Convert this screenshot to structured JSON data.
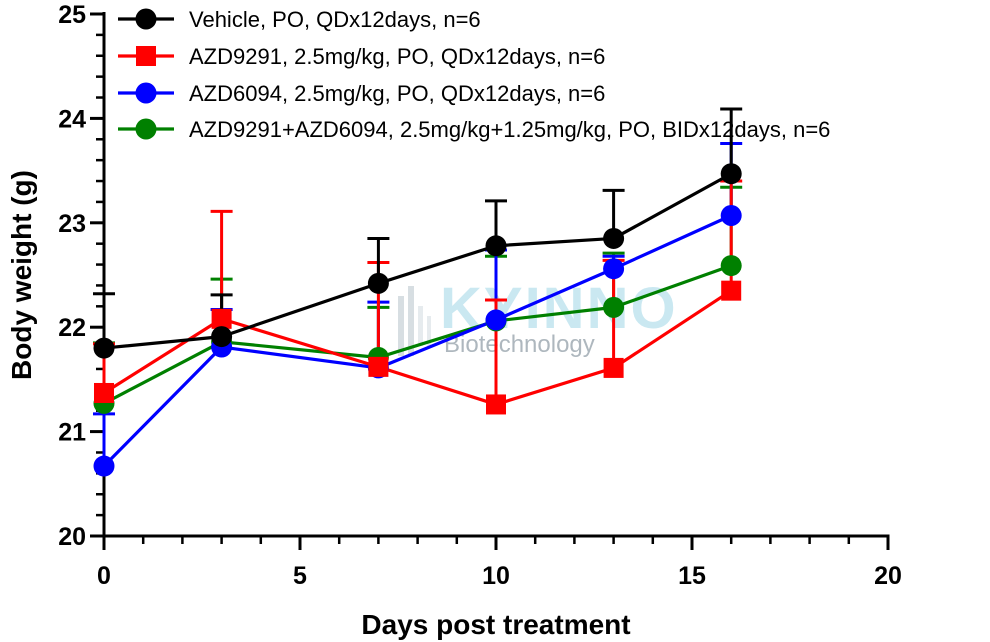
{
  "chart_data": {
    "type": "line",
    "title": "",
    "xlabel": "Days post treatment",
    "ylabel": "Body weight (g)",
    "xlim": [
      0,
      20
    ],
    "ylim": [
      20,
      25
    ],
    "x_ticks": [
      0,
      5,
      10,
      15,
      20
    ],
    "y_ticks": [
      20,
      21,
      22,
      23,
      24,
      25
    ],
    "grid": false,
    "legend_position": "top",
    "watermark": {
      "line1": "KYINNO",
      "line2": "Biotechnology"
    },
    "x": [
      0,
      3,
      7,
      10,
      13,
      16
    ],
    "series": [
      {
        "name": "Vehicle, PO, QDx12days, n=6",
        "color": "#000000",
        "marker": "circle",
        "y": [
          21.8,
          21.91,
          22.42,
          22.78,
          22.85,
          23.47
        ],
        "err": [
          0.52,
          0.4,
          0.43,
          0.43,
          0.46,
          0.62
        ]
      },
      {
        "name": "AZD9291, 2.5mg/kg, PO, QDx12days, n=6",
        "color": "#ff0000",
        "marker": "square",
        "y": [
          21.37,
          22.08,
          21.62,
          21.26,
          21.61,
          22.35
        ],
        "err": [
          0.47,
          1.03,
          1.0,
          1.0,
          1.03,
          1.05
        ]
      },
      {
        "name": "AZD6094, 2.5mg/kg, PO, QDx12days, n=6",
        "color": "#0000ff",
        "marker": "circle",
        "y": [
          20.67,
          21.81,
          21.61,
          22.07,
          22.56,
          23.07
        ],
        "err": [
          0.5,
          0.36,
          0.63,
          0.67,
          0.12,
          0.69
        ]
      },
      {
        "name": "AZD9291+AZD6094, 2.5mg/kg+1.25mg/kg, PO, BIDx12days, n=6",
        "color": "#008000",
        "marker": "circle",
        "y": [
          21.27,
          21.86,
          21.71,
          22.06,
          22.19,
          22.59
        ],
        "err": [
          0.58,
          0.6,
          0.48,
          0.62,
          0.52,
          0.75
        ]
      }
    ]
  }
}
